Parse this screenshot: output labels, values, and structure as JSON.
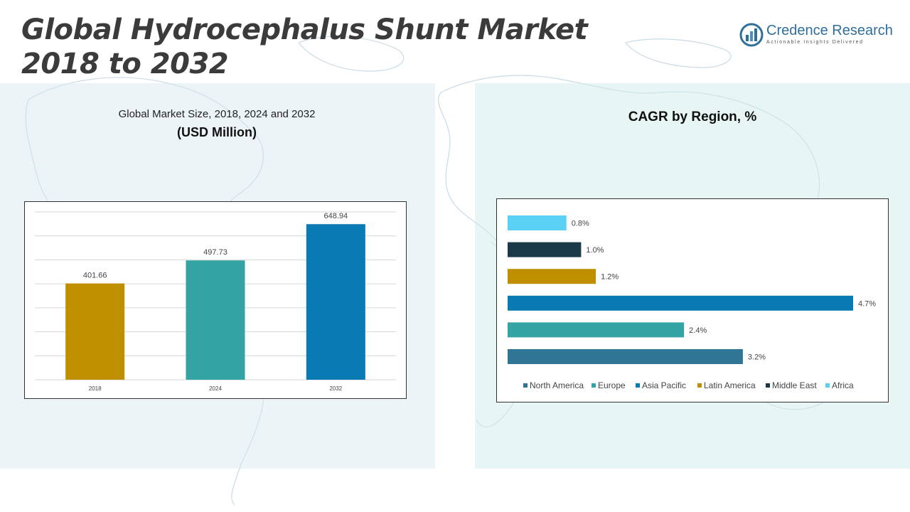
{
  "header": {
    "title_line1": "Global Hydrocephalus Shunt Market",
    "title_line2": "2018 to 2032"
  },
  "logo": {
    "name": "Credence Research",
    "tagline": "Actionable Insights Delivered"
  },
  "left_panel": {
    "subtitle": "Global Market Size, 2018, 2024 and 2032",
    "unit": "(USD Million)"
  },
  "right_panel": {
    "title": "CAGR by Region, %"
  },
  "chart_data": [
    {
      "type": "bar",
      "title": "Global Market Size, 2018, 2024 and 2032",
      "ylabel": "(USD Million)",
      "categories": [
        "2018",
        "2024",
        "2032"
      ],
      "values": [
        401.66,
        497.73,
        648.94
      ],
      "labels": [
        "401.66",
        "497.73",
        "648.94"
      ],
      "colors": [
        "#bf8f00",
        "#33a3a3",
        "#0a7ab3"
      ],
      "ylim": [
        0,
        700
      ],
      "grid": true
    },
    {
      "type": "bar",
      "orientation": "horizontal",
      "title": "CAGR by Region, %",
      "categories": [
        "Africa",
        "Middle East",
        "Latin America",
        "Asia Pacific",
        "Europe",
        "North America"
      ],
      "values": [
        0.8,
        1.0,
        1.2,
        4.7,
        2.4,
        3.2
      ],
      "labels": [
        "0.8%",
        "1.0%",
        "1.2%",
        "4.7%",
        "2.4%",
        "3.2%"
      ],
      "colors": [
        "#5ad0f5",
        "#1a3a4a",
        "#bf8f00",
        "#0a7ab3",
        "#33a3a3",
        "#2e7596"
      ],
      "xlim": [
        0,
        4.7
      ],
      "legend": [
        "North America",
        "Europe",
        "Asia Pacific",
        "Latin America",
        "Middle East",
        "Africa"
      ],
      "legend_colors": [
        "#2e7596",
        "#33a3a3",
        "#0a7ab3",
        "#bf8f00",
        "#1a3a4a",
        "#5ad0f5"
      ],
      "legend_position": "bottom"
    }
  ]
}
